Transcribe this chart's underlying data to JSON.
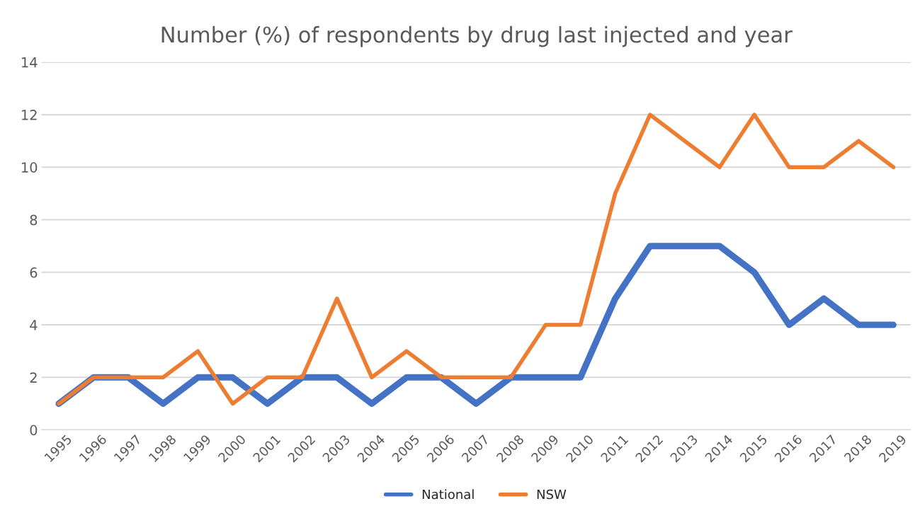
{
  "chart_data": {
    "type": "line",
    "title": "Number (%) of respondents by drug last injected and year",
    "categories": [
      "1995",
      "1996",
      "1997",
      "1998",
      "1999",
      "2000",
      "2001",
      "2002",
      "2003",
      "2004",
      "2005",
      "2006",
      "2007",
      "2008",
      "2009",
      "2010",
      "2011",
      "2012",
      "2013",
      "2014",
      "2015",
      "2016",
      "2017",
      "2018",
      "2019"
    ],
    "series": [
      {
        "name": "National",
        "color": "#4472c4",
        "values": [
          1,
          2,
          2,
          1,
          2,
          2,
          1,
          2,
          2,
          1,
          2,
          2,
          1,
          2,
          2,
          2,
          5,
          7,
          7,
          7,
          6,
          4,
          5,
          4,
          4
        ]
      },
      {
        "name": "NSW",
        "color": "#ed7d31",
        "values": [
          1,
          2,
          2,
          2,
          3,
          1,
          2,
          2,
          5,
          2,
          3,
          2,
          2,
          2,
          4,
          4,
          9,
          12,
          11,
          10,
          12,
          10,
          10,
          11,
          10
        ]
      }
    ],
    "ylim": [
      0,
      14
    ],
    "yticks": [
      0,
      2,
      4,
      6,
      8,
      10,
      12,
      14
    ],
    "grid": "y",
    "legend": "bottom",
    "marker": "none",
    "line_style": "solid"
  }
}
